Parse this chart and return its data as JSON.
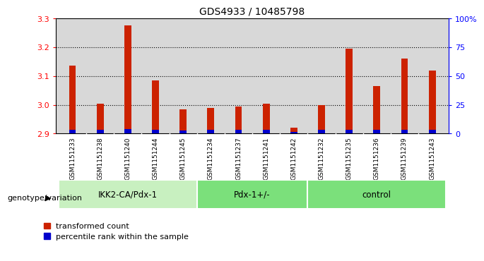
{
  "title": "GDS4933 / 10485798",
  "samples": [
    "GSM1151233",
    "GSM1151238",
    "GSM1151240",
    "GSM1151244",
    "GSM1151245",
    "GSM1151234",
    "GSM1151237",
    "GSM1151241",
    "GSM1151242",
    "GSM1151232",
    "GSM1151235",
    "GSM1151236",
    "GSM1151239",
    "GSM1151243"
  ],
  "red_values": [
    3.135,
    3.005,
    3.275,
    3.085,
    2.985,
    2.99,
    2.995,
    3.005,
    2.92,
    3.0,
    3.195,
    3.065,
    3.16,
    3.12
  ],
  "blue_heights": [
    0.012,
    0.012,
    0.015,
    0.012,
    0.01,
    0.012,
    0.012,
    0.012,
    0.006,
    0.012,
    0.012,
    0.012,
    0.012,
    0.012
  ],
  "ymin": 2.9,
  "ymax": 3.3,
  "yticks_left": [
    2.9,
    3.0,
    3.1,
    3.2,
    3.3
  ],
  "right_ytick_vals": [
    2.9,
    3.0,
    3.1,
    3.2,
    3.3
  ],
  "right_yticklabels": [
    "0",
    "25",
    "50",
    "75",
    "100%"
  ],
  "groups": [
    {
      "label": "IKK2-CA/Pdx-1",
      "start": 0,
      "end": 5
    },
    {
      "label": "Pdx-1+/-",
      "start": 5,
      "end": 9
    },
    {
      "label": "control",
      "start": 9,
      "end": 14
    }
  ],
  "group_colors": [
    "#c8f0c0",
    "#7be07b",
    "#7be07b"
  ],
  "bar_width": 0.25,
  "bar_color_red": "#cc2200",
  "bar_color_blue": "#0000cc",
  "plot_bg_color": "#d8d8d8",
  "tick_bg_color": "#c0c0c0",
  "legend_red": "transformed count",
  "legend_blue": "percentile rank within the sample",
  "xlabel_label": "genotype/variation",
  "grid_lines": [
    3.0,
    3.1,
    3.2
  ]
}
